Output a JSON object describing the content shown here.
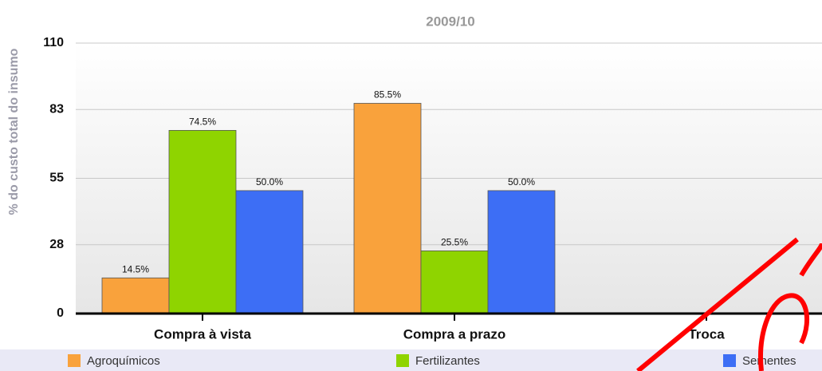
{
  "chart_data": {
    "type": "bar",
    "title": "2009/10",
    "y_label": "% do custo total do insumo",
    "categories": [
      "Compra à vista",
      "Compra a prazo",
      "Troca"
    ],
    "series": [
      {
        "name": "Agroquímicos",
        "color": "#f9a23c",
        "values": [
          14.5,
          85.5,
          null
        ],
        "value_labels": [
          "14.5%",
          "85.5%",
          null
        ]
      },
      {
        "name": "Fertilizantes",
        "color": "#8fd400",
        "values": [
          74.5,
          25.5,
          null
        ],
        "value_labels": [
          "74.5%",
          "25.5%",
          null
        ]
      },
      {
        "name": "Sementes",
        "color": "#3d6ef5",
        "values": [
          50.0,
          50.0,
          null
        ],
        "value_labels": [
          "50.0%",
          "50.0%",
          null
        ]
      }
    ],
    "ylim": [
      0,
      110
    ],
    "yticks": [
      0,
      28,
      55,
      83,
      110
    ],
    "grid": true,
    "legend": "bottom"
  }
}
